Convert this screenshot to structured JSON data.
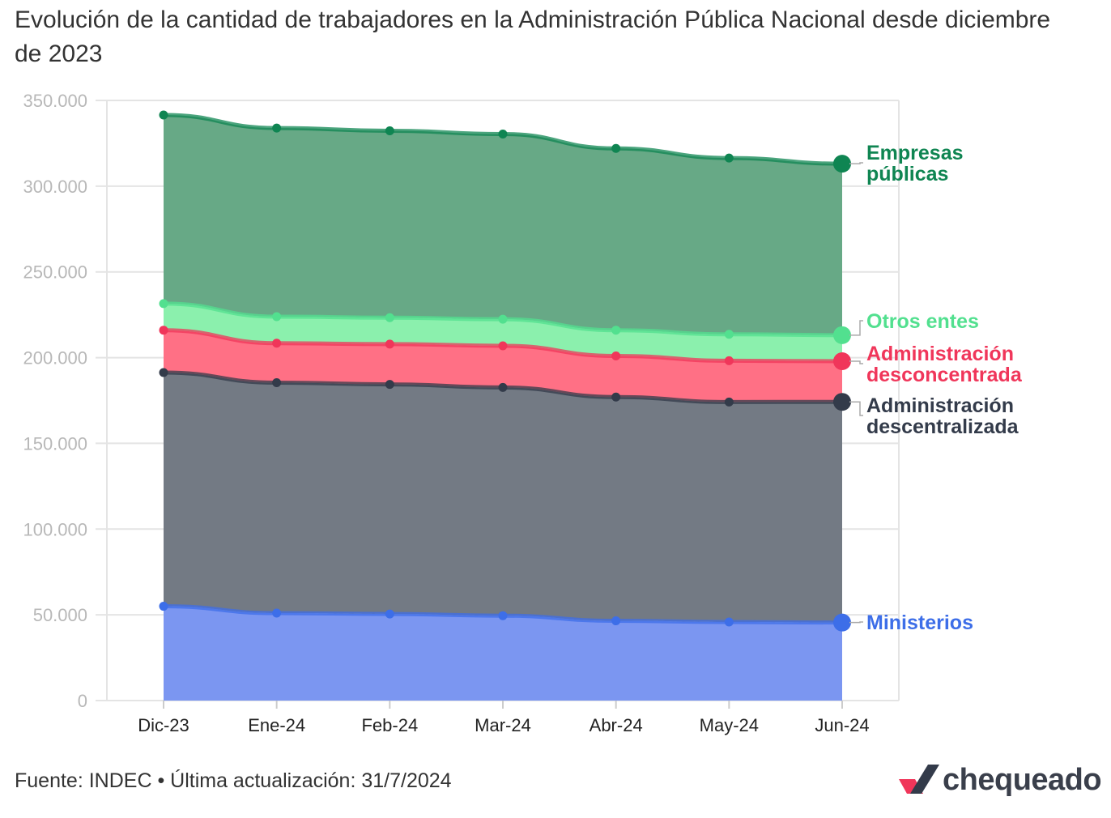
{
  "title": "Evolución de la cantidad de trabajadores en la Administración Pública Nacional desde diciembre de 2023",
  "footer": {
    "source": "Fuente: INDEC • Última actualización: 31/7/2024",
    "brand": "chequeado"
  },
  "chart_data": {
    "type": "area",
    "stacked": true,
    "categories": [
      "Dic-23",
      "Ene-24",
      "Feb-24",
      "Mar-24",
      "Abr-24",
      "May-24",
      "Jun-24"
    ],
    "ylim": [
      0,
      350000
    ],
    "yticks": [
      "0",
      "50.000",
      "100.000",
      "150.000",
      "200.000",
      "250.000",
      "300.000",
      "350.000"
    ],
    "ytick_values": [
      0,
      50000,
      100000,
      150000,
      200000,
      250000,
      300000,
      350000
    ],
    "grid": true,
    "legend": "direct labels at right end of series",
    "series": [
      {
        "name": "Ministerios",
        "label_lines": [
          "Ministerios"
        ],
        "color": "#3d6ee8",
        "fill": "#7b96f1",
        "values": [
          55000,
          51000,
          50500,
          49500,
          46500,
          45800,
          45500
        ]
      },
      {
        "name": "Administración descentralizada",
        "label_lines": [
          "Administración",
          "descentralizada"
        ],
        "color": "#333b4a",
        "fill": "#737a84",
        "values": [
          136300,
          134400,
          133900,
          133100,
          130500,
          128300,
          128700
        ]
      },
      {
        "name": "Administración desconcentrada",
        "label_lines": [
          "Administración",
          "desconcentrada"
        ],
        "color": "#f0365a",
        "fill": "#ff7085",
        "values": [
          24700,
          23000,
          23500,
          24300,
          24000,
          24100,
          23700
        ]
      },
      {
        "name": "Otros entes",
        "label_lines": [
          "Otros entes"
        ],
        "color": "#52e08f",
        "fill": "#8bf0ad",
        "values": [
          15500,
          15500,
          15400,
          15500,
          15000,
          15400,
          15200
        ]
      },
      {
        "name": "Empresas públicas",
        "label_lines": [
          "Empresas",
          "públicas"
        ],
        "color": "#0f8552",
        "fill": "#67a986",
        "values": [
          110000,
          110000,
          109000,
          108000,
          106000,
          102800,
          100000
        ]
      }
    ]
  }
}
